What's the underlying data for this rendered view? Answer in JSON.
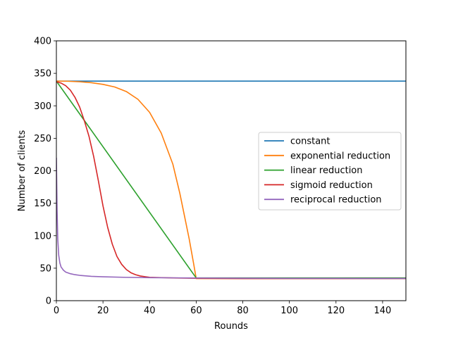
{
  "chart_data": {
    "type": "line",
    "title": "",
    "xlabel": "Rounds",
    "ylabel": "Number of clients",
    "xlim": [
      0,
      150
    ],
    "ylim": [
      0,
      400
    ],
    "x_ticks": [
      0,
      20,
      40,
      60,
      80,
      100,
      120,
      140
    ],
    "y_ticks": [
      0,
      50,
      100,
      150,
      200,
      250,
      300,
      350,
      400
    ],
    "grid": false,
    "legend_position": "center-right",
    "series": [
      {
        "name": "constant",
        "color": "#1f77b4",
        "x": [
          0,
          150
        ],
        "y": [
          338,
          338
        ]
      },
      {
        "name": "exponential reduction",
        "color": "#ff7f0e",
        "x": [
          0,
          5,
          10,
          15,
          20,
          25,
          30,
          35,
          40,
          45,
          50,
          53,
          55,
          57,
          58,
          59,
          60,
          70,
          80,
          90,
          100,
          110,
          120,
          130,
          140,
          150
        ],
        "y": [
          338,
          337.8,
          337,
          335.6,
          333,
          329,
          322,
          310,
          290,
          258,
          210,
          165,
          130,
          95,
          75,
          55,
          34,
          34,
          34,
          34,
          34,
          34,
          34,
          34,
          34,
          34
        ]
      },
      {
        "name": "linear reduction",
        "color": "#2ca02c",
        "x": [
          0,
          60,
          70,
          80,
          90,
          100,
          110,
          120,
          130,
          140,
          150
        ],
        "y": [
          338,
          35,
          35,
          35,
          35,
          35,
          35,
          35,
          35,
          35,
          35
        ]
      },
      {
        "name": "sigmoid reduction",
        "color": "#d62728",
        "x": [
          0,
          2,
          4,
          6,
          8,
          10,
          12,
          14,
          16,
          18,
          20,
          22,
          24,
          26,
          28,
          30,
          32,
          34,
          36,
          38,
          40,
          45,
          50,
          60,
          80,
          100,
          120,
          150
        ],
        "y": [
          337,
          335,
          331,
          324,
          313,
          298,
          277,
          253,
          222,
          185,
          146,
          113,
          87,
          68,
          56,
          48,
          43,
          40,
          38,
          37,
          36,
          35.5,
          35,
          34.5,
          34,
          34,
          34,
          34
        ]
      },
      {
        "name": "reciprocal reduction",
        "color": "#9467bd",
        "x": [
          0,
          0.3,
          0.6,
          1,
          1.5,
          2,
          3,
          4,
          6,
          8,
          10,
          15,
          20,
          30,
          40,
          60,
          80,
          100,
          120,
          150
        ],
        "y": [
          220,
          140,
          95,
          70,
          58,
          52,
          47,
          44,
          41.5,
          40,
          39,
          37.5,
          36.8,
          35.9,
          35.4,
          34.9,
          34.6,
          34.4,
          34.3,
          34.2
        ]
      }
    ]
  }
}
